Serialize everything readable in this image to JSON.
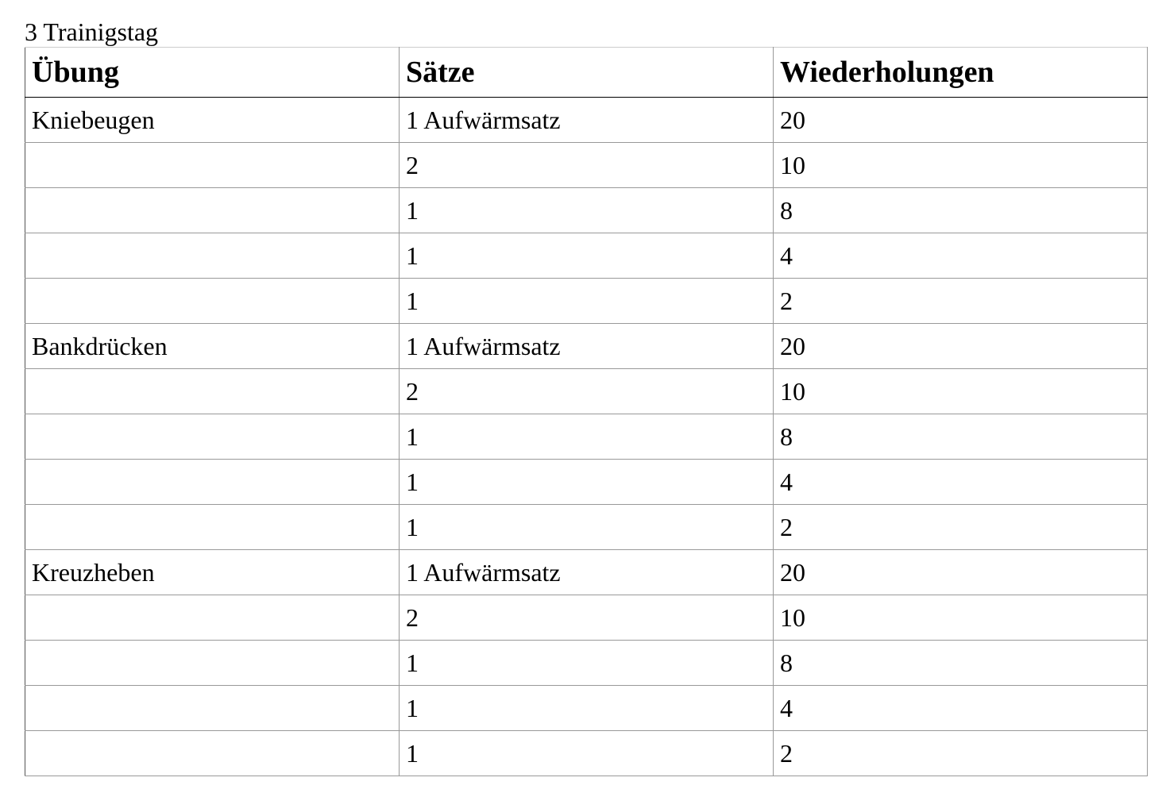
{
  "title": "3 Trainigstag",
  "table": {
    "headers": [
      "Übung",
      "Sätze",
      "Wiederholungen"
    ],
    "rows": [
      [
        "Kniebeugen",
        "1 Aufwärmsatz",
        "20"
      ],
      [
        "",
        "2",
        "10"
      ],
      [
        "",
        "1",
        "8"
      ],
      [
        "",
        "1",
        "4"
      ],
      [
        "",
        "1",
        "2"
      ],
      [
        "Bankdrücken",
        "1 Aufwärmsatz",
        "20"
      ],
      [
        "",
        "2",
        "10"
      ],
      [
        "",
        "1",
        "8"
      ],
      [
        "",
        "1",
        "4"
      ],
      [
        "",
        "1",
        "2"
      ],
      [
        "Kreuzheben",
        "1 Aufwärmsatz",
        "20"
      ],
      [
        "",
        "2",
        "10"
      ],
      [
        "",
        "1",
        "8"
      ],
      [
        "",
        "1",
        "4"
      ],
      [
        "",
        "1",
        "2"
      ]
    ]
  }
}
